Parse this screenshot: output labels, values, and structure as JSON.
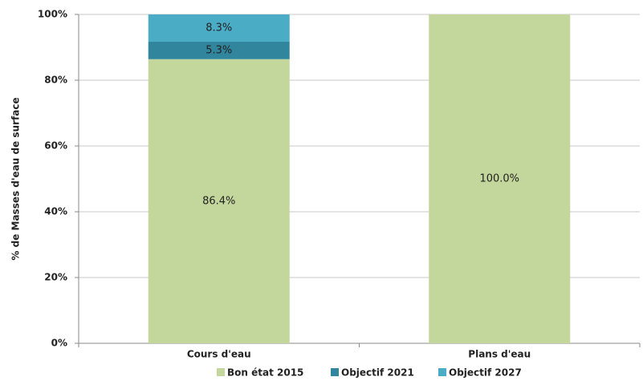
{
  "chart_data": {
    "type": "stacked_bar",
    "y_label": "% de Masses d'eau de surface",
    "categories": [
      "Cours d'eau",
      "Plans d'eau"
    ],
    "series": [
      {
        "name": "Bon état 2015",
        "color": "#c3d69b",
        "values": [
          86.4,
          100.0
        ],
        "value_labels": [
          "86.4%",
          "100.0%"
        ]
      },
      {
        "name": "Objectif 2021",
        "color": "#31859c",
        "values": [
          5.3,
          0
        ],
        "value_labels": [
          "5.3%",
          null
        ]
      },
      {
        "name": "Objectif 2027",
        "color": "#4bacc6",
        "values": [
          8.3,
          0
        ],
        "value_labels": [
          "8.3%",
          null
        ]
      }
    ],
    "ylim": [
      0,
      100
    ],
    "yticks": [
      {
        "value": 0,
        "label": "0%"
      },
      {
        "value": 20,
        "label": "20%"
      },
      {
        "value": 40,
        "label": "40%"
      },
      {
        "value": 60,
        "label": "60%"
      },
      {
        "value": 80,
        "label": "80%"
      },
      {
        "value": 100,
        "label": "100%"
      }
    ],
    "grid": true,
    "legend": "bottom"
  }
}
